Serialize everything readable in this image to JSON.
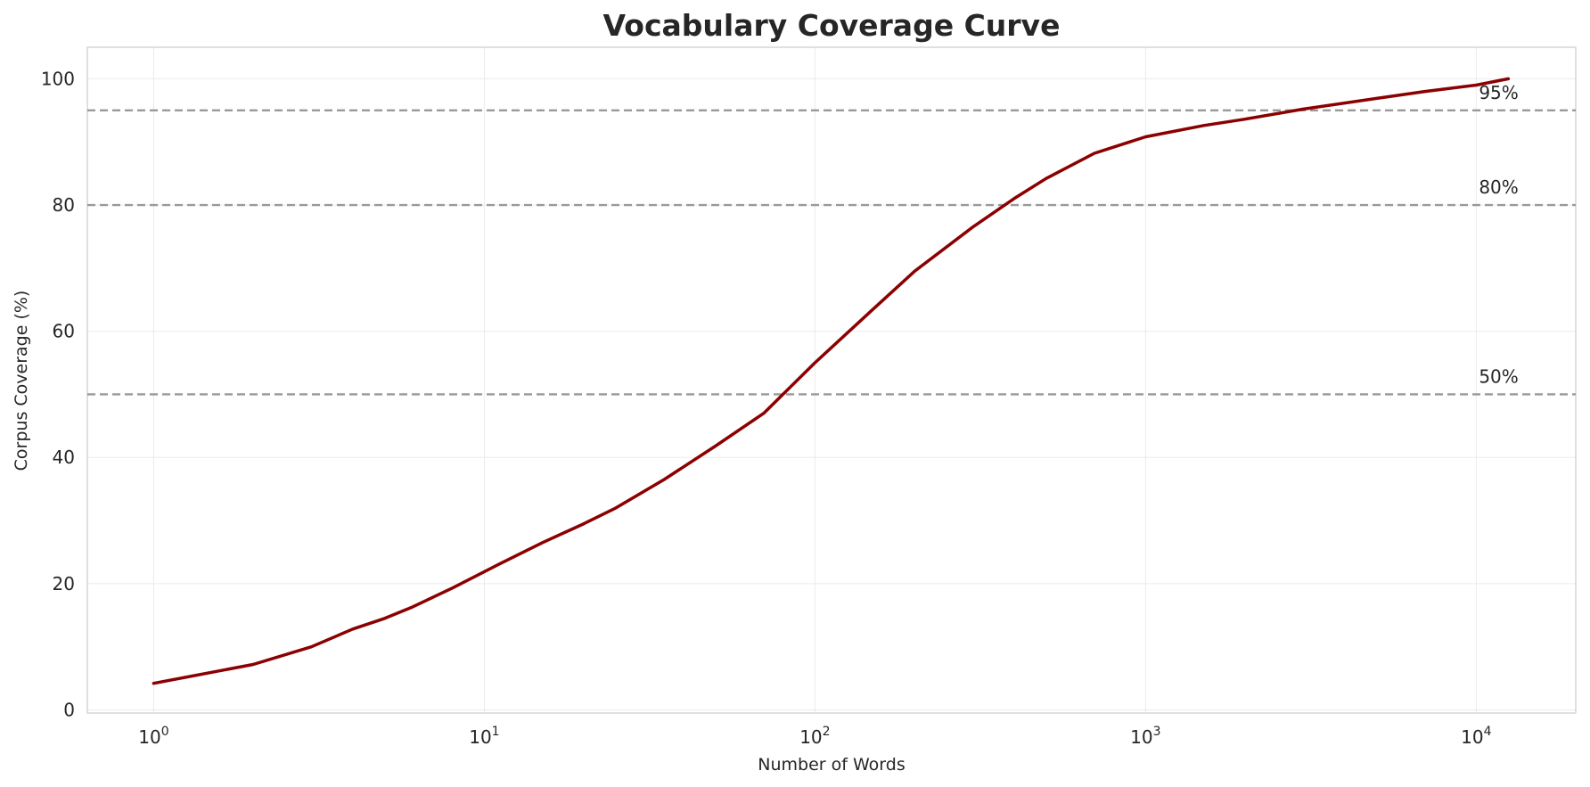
{
  "chart_data": {
    "type": "line",
    "title": "Vocabulary Coverage Curve",
    "xlabel": "Number of Words",
    "ylabel": "Corpus Coverage (%)",
    "x_scale": "log",
    "xlim": [
      0.63,
      20000
    ],
    "ylim": [
      -0.5,
      105
    ],
    "x_ticks": [
      {
        "value": 1,
        "base": "10",
        "exp": "0"
      },
      {
        "value": 10,
        "base": "10",
        "exp": "1"
      },
      {
        "value": 100,
        "base": "10",
        "exp": "2"
      },
      {
        "value": 1000,
        "base": "10",
        "exp": "3"
      },
      {
        "value": 10000,
        "base": "10",
        "exp": "4"
      }
    ],
    "y_ticks": [
      0,
      20,
      40,
      60,
      80,
      100
    ],
    "grid": true,
    "line_color": "#8b0000",
    "reference_lines": [
      {
        "y": 95,
        "label": "95%"
      },
      {
        "y": 80,
        "label": "80%"
      },
      {
        "y": 50,
        "label": "50%"
      }
    ],
    "reference_color": "#999999",
    "series": [
      {
        "x": [
          1,
          2,
          3,
          4,
          5,
          6,
          8,
          11,
          15,
          20,
          25,
          35,
          50,
          70,
          100,
          150,
          200,
          300,
          400,
          500,
          700,
          1000,
          1500,
          2000,
          3000,
          5000,
          7000,
          10000,
          12500
        ],
        "y": [
          4.2,
          7.2,
          10.0,
          12.8,
          14.5,
          16.2,
          19.3,
          23.0,
          26.5,
          29.5,
          32.0,
          36.5,
          41.8,
          47.0,
          55.0,
          63.5,
          69.5,
          76.5,
          81.0,
          84.2,
          88.2,
          90.8,
          92.6,
          93.6,
          95.2,
          96.9,
          98.0,
          99.0,
          100.0
        ]
      }
    ]
  }
}
